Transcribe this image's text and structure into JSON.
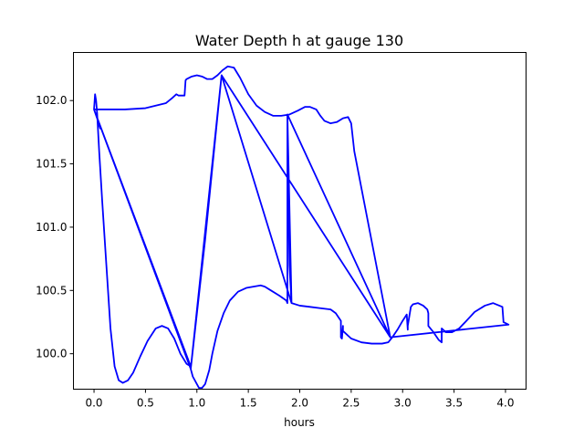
{
  "chart_data": {
    "type": "line",
    "title": "Water Depth h at gauge 130",
    "xlabel": "hours",
    "ylabel": "",
    "xlim": [
      -0.2,
      4.2
    ],
    "ylim": [
      99.72,
      102.38
    ],
    "xticks": [
      0.0,
      0.5,
      1.0,
      1.5,
      2.0,
      2.5,
      3.0,
      3.5,
      4.0
    ],
    "xtick_labels": [
      "0.0",
      "0.5",
      "1.0",
      "1.5",
      "2.0",
      "2.5",
      "3.0",
      "3.5",
      "4.0"
    ],
    "yticks": [
      100.0,
      100.5,
      101.0,
      101.5,
      102.0
    ],
    "ytick_labels": [
      "100.0",
      "100.5",
      "101.0",
      "101.5",
      "102.0"
    ],
    "grid": false,
    "series": [
      {
        "color": "#0000ff",
        "x": [
          0.0,
          0.01,
          0.02,
          0.03,
          0.05,
          0.08,
          0.12,
          0.16,
          0.2,
          0.24,
          0.28,
          0.33,
          0.38,
          0.45,
          0.52,
          0.6,
          0.66,
          0.72,
          0.78,
          0.84,
          0.9,
          0.94,
          0.0,
          0.3,
          0.5,
          0.6,
          0.7,
          0.76,
          0.8,
          0.82,
          0.88,
          0.89,
          0.9,
          0.95,
          1.0,
          1.05,
          1.1,
          1.15,
          1.2,
          1.25,
          1.3,
          1.36,
          1.42,
          1.5,
          1.58,
          1.66,
          1.74,
          1.82,
          1.9,
          1.98,
          2.05,
          2.1,
          2.16,
          2.2,
          2.24,
          2.3,
          2.36,
          2.42,
          2.47,
          2.5,
          2.53,
          2.88,
          1.88,
          1.9,
          1.92,
          2.0,
          2.1,
          2.2,
          2.3,
          2.35,
          2.4,
          2.4,
          2.41,
          2.42,
          2.42,
          2.5,
          2.6,
          2.7,
          2.8,
          2.86,
          2.9,
          2.95,
          3.0,
          3.04,
          3.05,
          3.05,
          3.08,
          3.1,
          3.15,
          3.2,
          3.24,
          3.25,
          3.25,
          3.3,
          3.35,
          3.38,
          3.38,
          3.42,
          3.48,
          3.55,
          3.62,
          3.7,
          3.8,
          3.88,
          3.94,
          3.97,
          3.98,
          3.98,
          4.03,
          2.88,
          1.24,
          1.08,
          0.94,
          0.96,
          1.0,
          1.02,
          1.05,
          1.08,
          1.12,
          1.15,
          1.2,
          1.26,
          1.32,
          1.4,
          1.48,
          1.55,
          1.62,
          1.66,
          1.72,
          1.8,
          1.87,
          1.88,
          1.88,
          1.92,
          1.24,
          0.94,
          0.0,
          0.03,
          0.06
        ],
        "y": [
          101.93,
          102.05,
          102.0,
          101.9,
          101.6,
          101.2,
          100.7,
          100.2,
          99.9,
          99.79,
          99.77,
          99.79,
          99.85,
          99.98,
          100.1,
          100.2,
          100.22,
          100.2,
          100.12,
          100.0,
          99.92,
          99.9,
          101.93,
          101.93,
          101.94,
          101.96,
          101.98,
          102.02,
          102.05,
          102.04,
          102.04,
          102.16,
          102.17,
          102.19,
          102.2,
          102.19,
          102.17,
          102.17,
          102.2,
          102.24,
          102.27,
          102.26,
          102.18,
          102.05,
          101.96,
          101.91,
          101.88,
          101.88,
          101.89,
          101.92,
          101.95,
          101.95,
          101.93,
          101.88,
          101.84,
          101.82,
          101.83,
          101.86,
          101.87,
          101.82,
          101.6,
          100.13,
          101.89,
          100.7,
          100.4,
          100.38,
          100.37,
          100.36,
          100.35,
          100.32,
          100.26,
          100.13,
          100.12,
          100.22,
          100.18,
          100.12,
          100.09,
          100.08,
          100.08,
          100.09,
          100.13,
          100.19,
          100.26,
          100.31,
          100.19,
          100.22,
          100.37,
          100.39,
          100.4,
          100.38,
          100.35,
          100.32,
          100.22,
          100.17,
          100.11,
          100.09,
          100.2,
          100.17,
          100.17,
          100.2,
          100.26,
          100.33,
          100.38,
          100.4,
          100.38,
          100.37,
          100.26,
          100.25,
          100.23,
          100.13,
          102.2,
          100.9,
          99.88,
          99.82,
          99.76,
          99.73,
          99.73,
          99.76,
          99.87,
          100.0,
          100.18,
          100.32,
          100.42,
          100.49,
          100.52,
          100.53,
          100.54,
          100.53,
          100.5,
          100.46,
          100.42,
          100.4,
          101.89,
          100.4,
          102.2,
          99.88,
          101.93,
          101.86,
          101.78
        ]
      }
    ]
  }
}
